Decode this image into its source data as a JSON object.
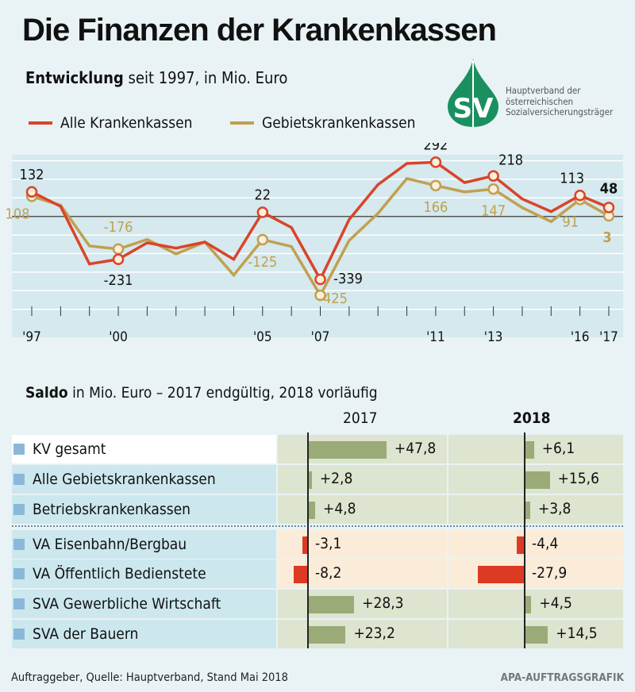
{
  "title": "Die Finanzen der Krankenkassen",
  "subtitle": {
    "bold": "Entwicklung",
    "rest": " seit 1997, in Mio. Euro"
  },
  "logo": {
    "letters": "SV",
    "text": [
      "Hauptverband der",
      "österreichischen",
      "Sozialversicherungsträger"
    ]
  },
  "colors": {
    "red": "#d9442a",
    "gold": "#c0a050",
    "bar_pos": "#9aab78",
    "bar_neg": "#dd3a24",
    "panel": "#d5e9ee",
    "label_bg": "#cce7ee"
  },
  "chart_data": [
    {
      "type": "line",
      "ylim": [
        -500,
        300
      ],
      "grid": true,
      "x": [
        1997,
        1998,
        1999,
        2000,
        2001,
        2002,
        2003,
        2004,
        2005,
        2006,
        2007,
        2008,
        2009,
        2010,
        2011,
        2012,
        2013,
        2014,
        2015,
        2016,
        2017
      ],
      "xticklabels": {
        "1997": "'97",
        "2000": "'00",
        "2005": "'05",
        "2007": "'07",
        "2011": "'11",
        "2013": "'13",
        "2016": "'16",
        "2017": "'17"
      },
      "series": [
        {
          "name": "Alle Krankenkassen",
          "color": "#d9442a",
          "values": [
            132,
            54,
            -256,
            -231,
            -142,
            -171,
            -138,
            -231,
            22,
            -60,
            -339,
            -17,
            171,
            285,
            292,
            182,
            218,
            94,
            26,
            113,
            48
          ],
          "labels": {
            "1997": "132",
            "2000": "-231",
            "2005": "22",
            "2007": "-339",
            "2011": "292",
            "2013": "218",
            "2016": "113",
            "2017": "48"
          }
        },
        {
          "name": "Gebietskrankenkassen",
          "color": "#c0a050",
          "values": [
            108,
            60,
            -159,
            -176,
            -124,
            -202,
            -138,
            -316,
            -125,
            -162,
            -425,
            -130,
            16,
            204,
            166,
            132,
            147,
            47,
            -28,
            91,
            3
          ],
          "labels": {
            "1997": "108",
            "2000": "-176",
            "2005": "-125",
            "2007": "-425",
            "2011": "166",
            "2013": "147",
            "2016": "91",
            "2017": "3"
          }
        }
      ]
    },
    {
      "type": "bar",
      "title": "Saldo in Mio. Euro – 2017 endgültig, 2018 vorläufig",
      "title_bold": "Saldo",
      "title_rest": " in Mio. Euro – 2017 endgültig, 2018 vorläufig",
      "columns": [
        "2017",
        "2018"
      ],
      "rows": [
        {
          "label": "KV gesamt",
          "v2017": 47.8,
          "v2018": 6.1,
          "t2017": "+47,8",
          "t2018": "+6,1"
        },
        {
          "label": "Alle Gebietskrankenkassen",
          "v2017": 2.8,
          "v2018": 15.6,
          "t2017": "+2,8",
          "t2018": "+15,6"
        },
        {
          "label": "Betriebskrankenkassen",
          "v2017": 4.8,
          "v2018": 3.8,
          "t2017": "+4,8",
          "t2018": "+3,8"
        },
        {
          "label": "VA Eisenbahn/Bergbau",
          "v2017": -3.1,
          "v2018": -4.4,
          "t2017": "-3,1",
          "t2018": "-4,4"
        },
        {
          "label": "VA Öffentlich Bedienstete",
          "v2017": -8.2,
          "v2018": -27.9,
          "t2017": "-8,2",
          "t2018": "-27,9"
        },
        {
          "label": "SVA Gewerbliche Wirtschaft",
          "v2017": 28.3,
          "v2018": 4.5,
          "t2017": "+28,3",
          "t2018": "+4,5"
        },
        {
          "label": "SVA der Bauern",
          "v2017": 23.2,
          "v2018": 14.5,
          "t2017": "+23,2",
          "t2018": "+14,5"
        }
      ]
    }
  ],
  "footer": {
    "source": "Auftraggeber, Quelle: Hauptverband, Stand Mai 2018",
    "credit": "APA-AUFTRAGSGRAFIK"
  }
}
